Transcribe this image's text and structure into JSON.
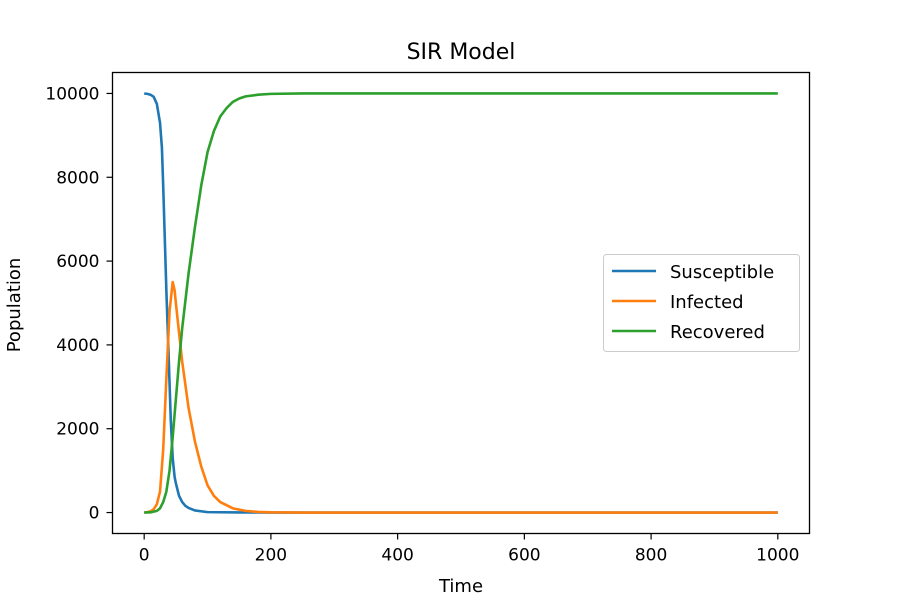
{
  "chart_data": {
    "type": "line",
    "title": "SIR Model",
    "xlabel": "Time",
    "ylabel": "Population",
    "xlim": [
      -50,
      1050
    ],
    "ylim": [
      -500,
      10500
    ],
    "xticks": [
      0,
      200,
      400,
      600,
      800,
      1000
    ],
    "yticks": [
      0,
      2000,
      4000,
      6000,
      8000,
      10000
    ],
    "grid": false,
    "legend_position": "center-right",
    "series": [
      {
        "name": "Susceptible",
        "color": "#1f77b4",
        "x": [
          0,
          5,
          10,
          15,
          20,
          25,
          28,
          30,
          33,
          35,
          38,
          40,
          42,
          45,
          48,
          50,
          55,
          60,
          65,
          70,
          80,
          100,
          150,
          200,
          400,
          600,
          800,
          1000
        ],
        "y": [
          9999,
          9990,
          9970,
          9920,
          9750,
          9300,
          8700,
          7800,
          6300,
          5300,
          4000,
          3100,
          2200,
          1300,
          850,
          700,
          400,
          250,
          160,
          110,
          50,
          10,
          2,
          0,
          0,
          0,
          0,
          0
        ]
      },
      {
        "name": "Infected",
        "color": "#ff7f0e",
        "x": [
          0,
          5,
          10,
          15,
          20,
          25,
          30,
          35,
          40,
          45,
          48,
          50,
          55,
          60,
          70,
          80,
          90,
          100,
          110,
          120,
          140,
          160,
          180,
          200,
          250,
          400,
          600,
          800,
          1000
        ],
        "y": [
          1,
          10,
          30,
          80,
          200,
          500,
          1500,
          3200,
          4800,
          5500,
          5300,
          5000,
          4300,
          3600,
          2500,
          1700,
          1100,
          650,
          400,
          250,
          100,
          40,
          15,
          5,
          0,
          0,
          0,
          0,
          0
        ]
      },
      {
        "name": "Recovered",
        "color": "#2ca02c",
        "x": [
          0,
          10,
          20,
          25,
          30,
          35,
          40,
          45,
          50,
          55,
          60,
          70,
          80,
          90,
          100,
          110,
          120,
          130,
          140,
          150,
          160,
          180,
          200,
          250,
          400,
          600,
          800,
          1000
        ],
        "y": [
          0,
          5,
          40,
          100,
          250,
          500,
          1000,
          1800,
          2700,
          3600,
          4400,
          5700,
          6800,
          7800,
          8600,
          9100,
          9450,
          9650,
          9800,
          9880,
          9930,
          9970,
          9990,
          10000,
          10000,
          10000,
          10000,
          10000
        ]
      }
    ]
  }
}
